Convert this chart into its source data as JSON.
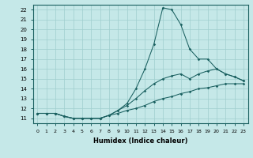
{
  "xlabel": "Humidex (Indice chaleur)",
  "bg_color": "#c5e8e8",
  "grid_color": "#9fcece",
  "line_color": "#1a6060",
  "x_values": [
    0,
    1,
    2,
    3,
    4,
    5,
    6,
    7,
    8,
    9,
    10,
    11,
    12,
    13,
    14,
    15,
    16,
    17,
    18,
    19,
    20,
    21,
    22,
    23
  ],
  "line_bottom": [
    11.5,
    11.5,
    11.5,
    11.2,
    11.0,
    11.0,
    11.0,
    11.0,
    11.3,
    11.5,
    11.8,
    12.0,
    12.3,
    12.7,
    13.0,
    13.2,
    13.5,
    13.7,
    14.0,
    14.1,
    14.3,
    14.5,
    14.5,
    14.5
  ],
  "line_mid": [
    11.5,
    11.5,
    11.5,
    11.2,
    11.0,
    11.0,
    11.0,
    11.0,
    11.3,
    11.8,
    12.3,
    13.0,
    13.8,
    14.5,
    15.0,
    15.3,
    15.5,
    15.0,
    15.5,
    15.8,
    16.0,
    15.5,
    15.2,
    14.8
  ],
  "line_top": [
    11.5,
    11.5,
    11.5,
    11.2,
    11.0,
    11.0,
    11.0,
    11.0,
    11.3,
    11.8,
    12.5,
    14.0,
    16.0,
    18.5,
    22.2,
    22.0,
    20.5,
    18.0,
    17.0,
    17.0,
    16.0,
    15.5,
    15.2,
    14.8
  ],
  "xlim": [
    -0.5,
    23.5
  ],
  "ylim": [
    10.5,
    22.5
  ],
  "yticks": [
    11,
    12,
    13,
    14,
    15,
    16,
    17,
    18,
    19,
    20,
    21,
    22
  ],
  "xticks": [
    0,
    1,
    2,
    3,
    4,
    5,
    6,
    7,
    8,
    9,
    10,
    11,
    12,
    13,
    14,
    15,
    16,
    17,
    18,
    19,
    20,
    21,
    22,
    23
  ]
}
